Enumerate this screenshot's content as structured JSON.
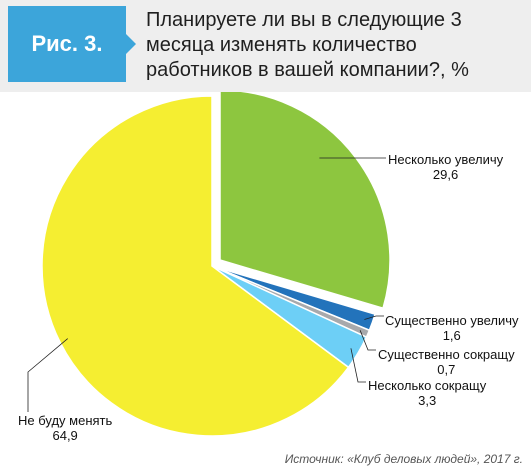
{
  "figure": {
    "badge": "Рис. 3.",
    "title": "Планируете ли вы в следующие 3 месяца изменять количество работников в вашей компании?, %",
    "source": "Источник: «Клуб деловых людей», 2017 г."
  },
  "chart_data": {
    "type": "pie",
    "title": "Планируете ли вы в следующие 3 месяца изменять количество работников в вашей компании?, %",
    "slices": [
      {
        "label": "Несколько увеличу",
        "value": 29.6,
        "display": "29,6",
        "color": "#8dc63f",
        "exploded": true
      },
      {
        "label": "Существенно увеличу",
        "value": 1.6,
        "display": "1,6",
        "color": "#2373bb"
      },
      {
        "label": "Существенно сокращу",
        "value": 0.7,
        "display": "0,7",
        "color": "#a7a9ac"
      },
      {
        "label": "Несколько сокращу",
        "value": 3.3,
        "display": "3,3",
        "color": "#6dcff6"
      },
      {
        "label": "Не буду менять",
        "value": 64.9,
        "display": "64,9",
        "color": "#f5ee31"
      }
    ]
  }
}
